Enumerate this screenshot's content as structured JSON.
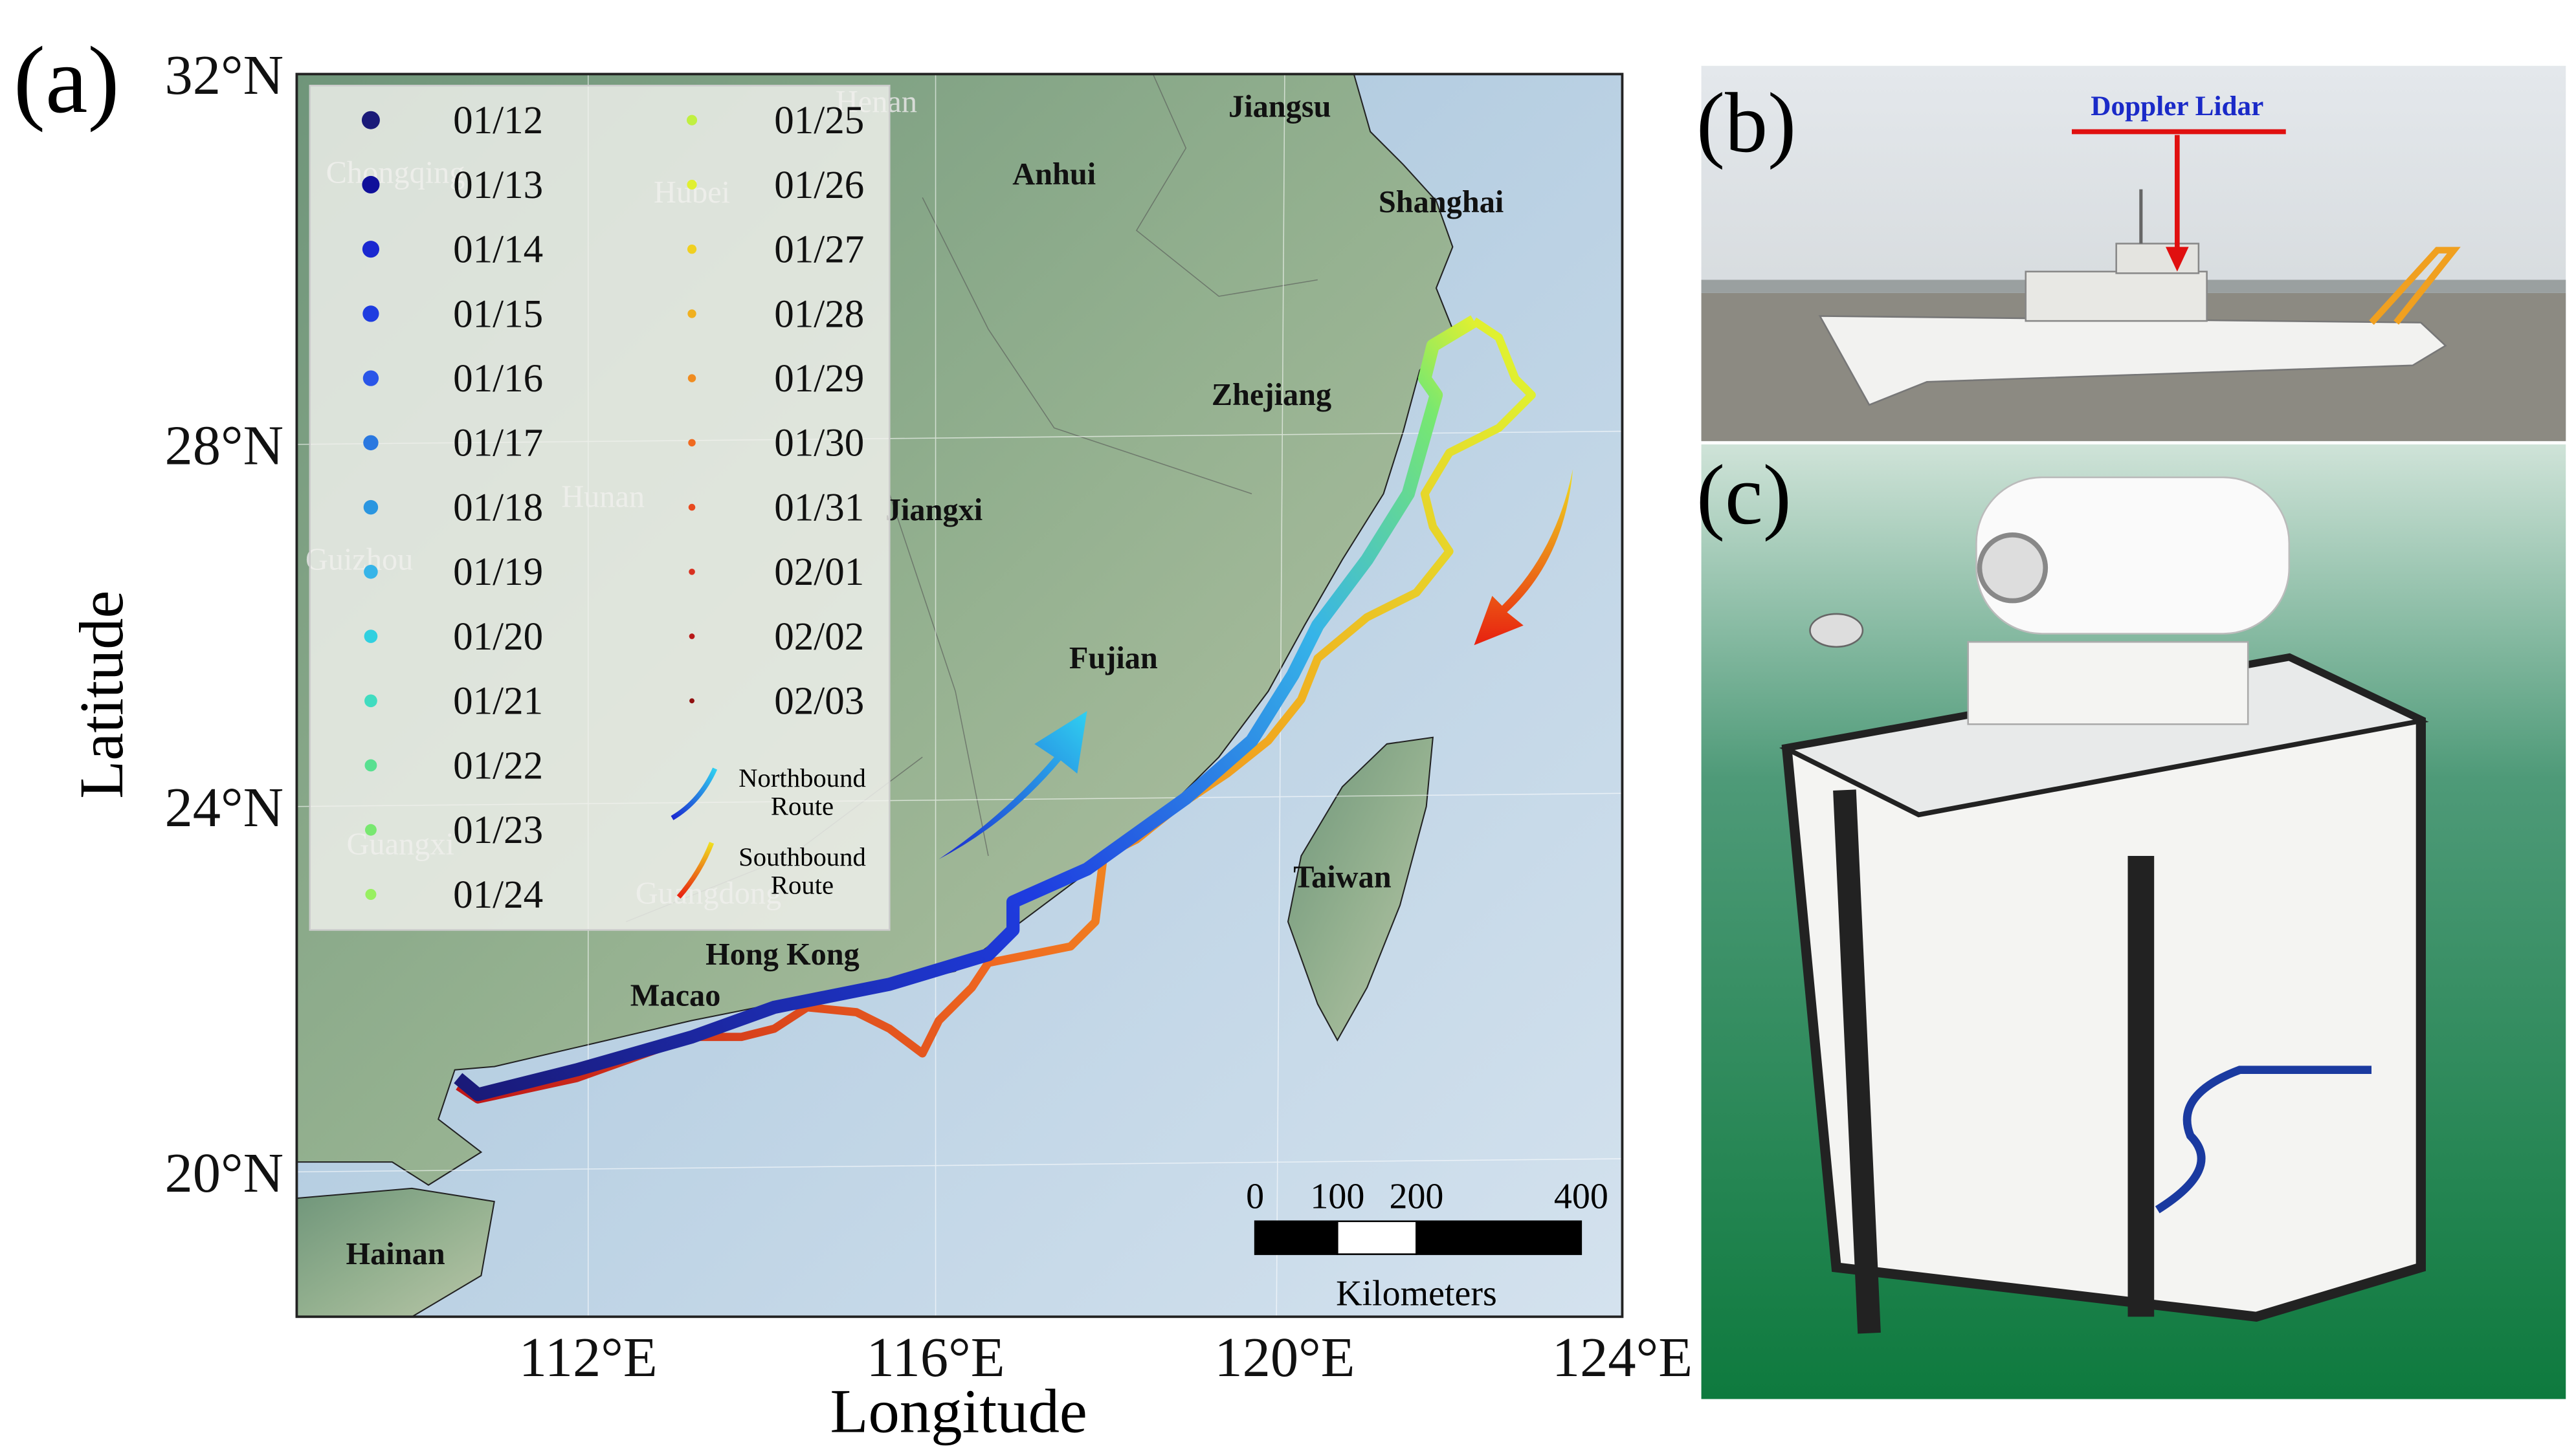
{
  "panels": [
    {
      "label": "(a)"
    },
    {
      "label": "(b)",
      "annotation": "Doppler Lidar"
    },
    {
      "label": "(c)"
    }
  ],
  "map": {
    "x_axis_label": "Longitude",
    "y_axis_label": "Latitude",
    "lat_ticks": [
      "32°N",
      "28°N",
      "24°N",
      "20°N"
    ],
    "lon_ticks": [
      "112°E",
      "116°E",
      "120°E",
      "124°E"
    ],
    "legend": [
      {
        "date": "01/12",
        "color": "#1a1a78"
      },
      {
        "date": "01/13",
        "color": "#10109a"
      },
      {
        "date": "01/14",
        "color": "#1a28d0"
      },
      {
        "date": "01/15",
        "color": "#1e3ce0"
      },
      {
        "date": "01/16",
        "color": "#2a56e8"
      },
      {
        "date": "01/17",
        "color": "#2a78e0"
      },
      {
        "date": "01/18",
        "color": "#2a96e0"
      },
      {
        "date": "01/19",
        "color": "#36b4e8"
      },
      {
        "date": "01/20",
        "color": "#30d0e0"
      },
      {
        "date": "01/21",
        "color": "#40dcc0"
      },
      {
        "date": "01/22",
        "color": "#58e090"
      },
      {
        "date": "01/23",
        "color": "#78e870"
      },
      {
        "date": "01/24",
        "color": "#98f060"
      },
      {
        "date": "01/25",
        "color": "#c0f040"
      },
      {
        "date": "01/26",
        "color": "#e0f030"
      },
      {
        "date": "01/27",
        "color": "#f0d020"
      },
      {
        "date": "01/28",
        "color": "#f0b020"
      },
      {
        "date": "01/29",
        "color": "#f08c20"
      },
      {
        "date": "01/30",
        "color": "#f06a20"
      },
      {
        "date": "01/31",
        "color": "#e84a20"
      },
      {
        "date": "02/01",
        "color": "#d83020"
      },
      {
        "date": "02/02",
        "color": "#b81818"
      },
      {
        "date": "02/03",
        "color": "#901010"
      }
    ],
    "route_legend": [
      {
        "lines": [
          "Northbound",
          "Route"
        ]
      },
      {
        "lines": [
          "Southbound",
          "Route"
        ]
      }
    ],
    "places": [
      "Henan",
      "Jiangsu",
      "Anhui",
      "Shanghai",
      "Hubei",
      "Chongqing",
      "Zhejiang",
      "Hunan",
      "Jiangxi",
      "Guizhou",
      "Fujian",
      "Taiwan",
      "Guangxi",
      "Guangdong",
      "Hong Kong",
      "Macao",
      "Hainan"
    ],
    "scale_bar": {
      "ticks": [
        "0",
        "100",
        "200",
        "400"
      ],
      "unit": "Kilometers"
    }
  }
}
